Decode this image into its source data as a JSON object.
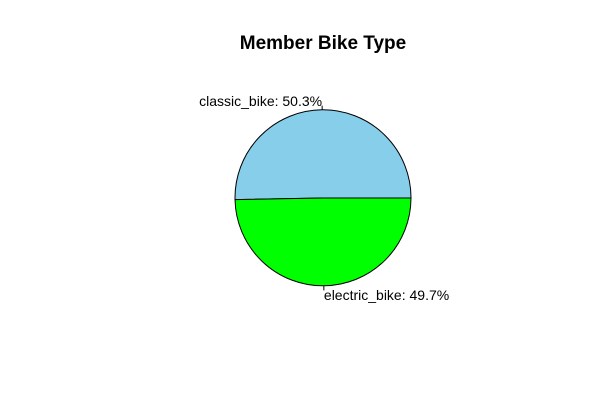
{
  "chart_data": {
    "type": "pie",
    "title": "Member Bike Type",
    "slices": [
      {
        "label": "classic_bike",
        "percent": 50.3,
        "display": "classic_bike: 50.3%",
        "color": "#87CEEB"
      },
      {
        "label": "electric_bike",
        "percent": 49.7,
        "display": "electric_bike: 49.7%",
        "color": "#00FF00"
      }
    ],
    "legend": "none",
    "slice_outline_color": "#000000"
  }
}
